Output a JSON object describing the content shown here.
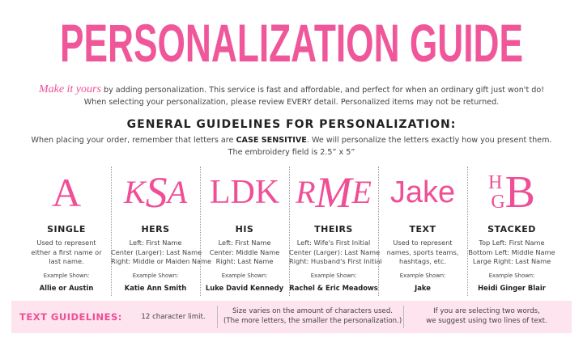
{
  "header": {
    "title": "PERSONALIZATION GUIDE"
  },
  "intro": {
    "lead": "Make it yours",
    "line1": "by adding personalization.  This service is fast and affordable, and perfect for when an ordinary gift just won't do!",
    "line2": "When selecting your personalization, please review EVERY detail. Personalized items may not be returned."
  },
  "guidelines": {
    "heading": "GENERAL GUIDELINES FOR PERSONALIZATION:",
    "line1_before": "When placing your order, remember that letters are ",
    "line1_bold": "CASE SENSITIVE",
    "line1_after": ".  We will personalize the letters exactly how you present them.",
    "line2": "The embroidery field is 2.5” x 5”"
  },
  "styles": [
    {
      "sample": [
        "A"
      ],
      "name": "SINGLE",
      "description": [
        "Used to represent",
        "either a first name or",
        "last name."
      ],
      "example_label": "Example Shown:",
      "example": "Allie or Austin"
    },
    {
      "sample": [
        "K",
        "S",
        "A"
      ],
      "name": "HERS",
      "description": [
        "Left: First Name",
        "Center (Larger): Last Name",
        "Right: Middle or Maiden Name"
      ],
      "example_label": "Example Shown:",
      "example": "Katie Ann Smith"
    },
    {
      "sample": [
        "LDK"
      ],
      "name": "HIS",
      "description": [
        "Left: First Name",
        "Center: Middle Name",
        "Right: Last Name"
      ],
      "example_label": "Example Shown:",
      "example": "Luke David Kennedy"
    },
    {
      "sample": [
        "R",
        "M",
        "E"
      ],
      "name": "THEIRS",
      "description": [
        "Left: Wife's First Initial",
        "Center (Larger): Last Name",
        "Right: Husband's First Initial"
      ],
      "example_label": "Example Shown:",
      "example": "Rachel & Eric Meadows"
    },
    {
      "sample": [
        "Jake"
      ],
      "name": "TEXT",
      "description": [
        "Used to represent",
        "names, sports teams,",
        "hashtags, etc."
      ],
      "example_label": "Example Shown:",
      "example": "Jake"
    },
    {
      "sample": [
        "H",
        "G",
        "B"
      ],
      "name": "STACKED",
      "description": [
        "Top Left: First Name",
        "Bottom Left: Middle Name",
        "Large Right: Last Name"
      ],
      "example_label": "Example Shown:",
      "example": "Heidi Ginger Blair"
    }
  ],
  "text_guidelines": {
    "label": "TEXT GUIDELINES:",
    "items": [
      [
        "12 character limit."
      ],
      [
        "Size varies on the amount of characters used.",
        "(The more letters, the smaller the personalization.)"
      ],
      [
        "If you are selecting two words,",
        "we suggest using two lines of text."
      ]
    ]
  }
}
